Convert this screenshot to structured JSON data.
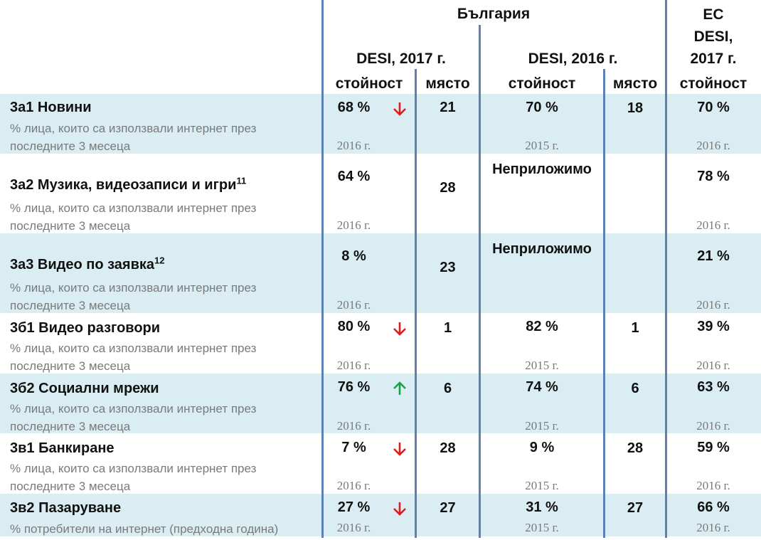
{
  "header": {
    "bulgaria": "България",
    "desi2017": "DESI, 2017 г.",
    "desi2016": "DESI, 2016 г.",
    "eu_line1": "ЕС",
    "eu_line2": "DESI,",
    "eu_line3": "2017 г.",
    "col_value": "стойност",
    "col_rank": "място"
  },
  "rows": [
    {
      "name": "3а1 Новини",
      "sup": "",
      "desc": "% лица, които са използвали интернет през последните 3 месеца",
      "v2017": "68 %",
      "trend": "down",
      "y2017": "2016 г.",
      "rank2017": "21",
      "v2016": "70 %",
      "y2016": "2015 г.",
      "rank2016": "18",
      "eu": "70 %",
      "yeu": "2016 г."
    },
    {
      "name": "3а2 Музика, видеозаписи и игри",
      "sup": "11",
      "desc": "% лица, които са използвали интернет през последните 3 месеца",
      "v2017": "64 %",
      "trend": "",
      "y2017": "2016 г.",
      "rank2017": "28",
      "v2016": "Неприложимо",
      "y2016": "",
      "rank2016": "",
      "eu": "78 %",
      "yeu": "2016 г."
    },
    {
      "name": "3а3 Видео по заявка",
      "sup": "12",
      "desc": "% лица, които са използвали интернет през последните 3 месеца",
      "v2017": "8 %",
      "trend": "",
      "y2017": "2016 г.",
      "rank2017": "23",
      "v2016": "Неприложимо",
      "y2016": "",
      "rank2016": "",
      "eu": "21 %",
      "yeu": "2016 г."
    },
    {
      "name": "3б1 Видео разговори",
      "sup": "",
      "desc": "% лица, които са използвали интернет през последните 3 месеца",
      "v2017": "80 %",
      "trend": "down",
      "y2017": "2016 г.",
      "rank2017": "1",
      "v2016": "82 %",
      "y2016": "2015 г.",
      "rank2016": "1",
      "eu": "39 %",
      "yeu": "2016 г."
    },
    {
      "name": "3б2 Социални мрежи",
      "sup": "",
      "desc": "% лица, които са използвали интернет през последните 3 месеца",
      "v2017": "76 %",
      "trend": "up",
      "y2017": "2016 г.",
      "rank2017": "6",
      "v2016": "74 %",
      "y2016": "2015 г.",
      "rank2016": "6",
      "eu": "63 %",
      "yeu": "2016 г."
    },
    {
      "name": "3в1 Банкиране",
      "sup": "",
      "desc": "% лица, които са използвали интернет през последните 3 месеца",
      "v2017": "7 %",
      "trend": "down",
      "y2017": "2016 г.",
      "rank2017": "28",
      "v2016": "9 %",
      "y2016": "2015 г.",
      "rank2016": "28",
      "eu": "59 %",
      "yeu": "2016 г."
    },
    {
      "name": "3в2 Пазаруване",
      "sup": "",
      "desc": "% потребители на интернет (предходна година)",
      "v2017": "27 %",
      "trend": "down",
      "y2017": "2016 г.",
      "rank2017": "27",
      "v2016": "31 %",
      "y2016": "2015 г.",
      "rank2016": "27",
      "eu": "66 %",
      "yeu": "2016 г."
    }
  ],
  "colors": {
    "band": "#daedf3",
    "line": "#5b82b3",
    "down": "#e11b1b",
    "up": "#1aa24a"
  }
}
